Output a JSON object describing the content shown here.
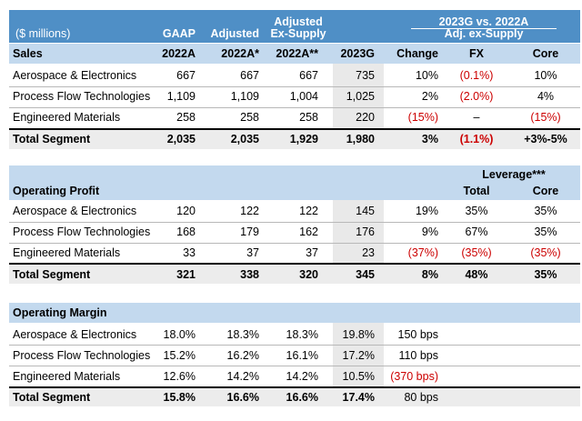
{
  "banner": {
    "units": "($ millions)",
    "gaap": "GAAP",
    "adjusted": "Adjusted",
    "adj_ex_supply_1": "Adjusted",
    "adj_ex_supply_2": "Ex-Supply",
    "group_line1": "2023G vs. 2022A",
    "group_line2": "Adj. ex-Supply"
  },
  "sales": {
    "title": "Sales",
    "col_headers": [
      "2022A",
      "2022A*",
      "2022A**",
      "2023G",
      "Change",
      "FX",
      "Core"
    ],
    "rows": [
      {
        "label": "Aerospace & Electronics",
        "gaap": "667",
        "adj": "667",
        "exsup": "667",
        "g2023": "735",
        "change": "10%",
        "fx": "(0.1%)",
        "core": "10%"
      },
      {
        "label": "Process Flow Technologies",
        "gaap": "1,109",
        "adj": "1,109",
        "exsup": "1,004",
        "g2023": "1,025",
        "change": "2%",
        "fx": "(2.0%)",
        "core": "4%"
      },
      {
        "label": "Engineered Materials",
        "gaap": "258",
        "adj": "258",
        "exsup": "258",
        "g2023": "220",
        "change": "(15%)",
        "fx": "–",
        "core": "(15%)"
      }
    ],
    "total": {
      "label": "Total Segment",
      "gaap": "2,035",
      "adj": "2,035",
      "exsup": "1,929",
      "g2023": "1,980",
      "change": "3%",
      "fx": "(1.1%)",
      "core": "+3%-5%"
    }
  },
  "op_profit": {
    "title": "Operating Profit",
    "leverage": "Leverage***",
    "col_total": "Total",
    "col_core": "Core",
    "rows": [
      {
        "label": "Aerospace & Electronics",
        "gaap": "120",
        "adj": "122",
        "exsup": "122",
        "g2023": "145",
        "change": "19%",
        "total": "35%",
        "core": "35%"
      },
      {
        "label": "Process Flow Technologies",
        "gaap": "168",
        "adj": "179",
        "exsup": "162",
        "g2023": "176",
        "change": "9%",
        "total": "67%",
        "core": "35%"
      },
      {
        "label": "Engineered Materials",
        "gaap": "33",
        "adj": "37",
        "exsup": "37",
        "g2023": "23",
        "change": "(37%)",
        "total": "(35%)",
        "core": "(35%)"
      }
    ],
    "total": {
      "label": "Total Segment",
      "gaap": "321",
      "adj": "338",
      "exsup": "320",
      "g2023": "345",
      "change": "8%",
      "total": "48%",
      "core": "35%"
    }
  },
  "op_margin": {
    "title": "Operating Margin",
    "rows": [
      {
        "label": "Aerospace & Electronics",
        "gaap": "18.0%",
        "adj": "18.3%",
        "exsup": "18.3%",
        "g2023": "19.8%",
        "change": "150 bps"
      },
      {
        "label": "Process Flow Technologies",
        "gaap": "15.2%",
        "adj": "16.2%",
        "exsup": "16.1%",
        "g2023": "17.2%",
        "change": "110 bps"
      },
      {
        "label": "Engineered Materials",
        "gaap": "12.6%",
        "adj": "14.2%",
        "exsup": "14.2%",
        "g2023": "10.5%",
        "change": "(370 bps)"
      }
    ],
    "total": {
      "label": "Total Segment",
      "gaap": "15.8%",
      "adj": "16.6%",
      "exsup": "16.6%",
      "g2023": "17.4%",
      "change": "80 bps"
    }
  },
  "colors": {
    "banner": "#4f8fc6",
    "header_band": "#c3d9ee",
    "negative": "#cc0000",
    "guidance_column": "#e9e9e9"
  }
}
